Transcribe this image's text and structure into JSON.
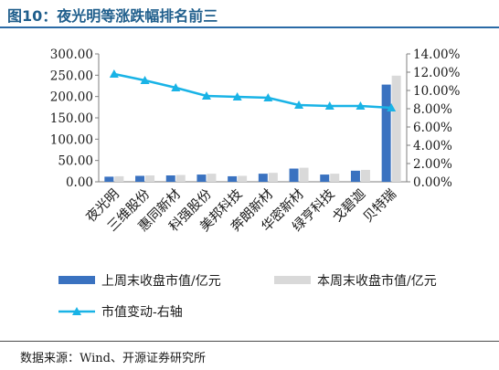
{
  "figure_title": "图10：夜光明等涨跌幅排名前三",
  "source": "数据来源：Wind、开源证券研究所",
  "colors": {
    "this_week": "#3a72c0",
    "last_week": "#d9d9d9",
    "change": "#19b3e6",
    "title": "#1f5e8c"
  },
  "chart_data": {
    "type": "bar",
    "categories": [
      "夜光明",
      "三维股份",
      "惠同新材",
      "科强股份",
      "美邦科技",
      "奔朗新材",
      "华密新材",
      "绿亨科技",
      "戈碧迦",
      "贝特瑞"
    ],
    "series": [
      {
        "name": "上周末收盘市值/亿元",
        "type": "bar",
        "axis": "left",
        "values": [
          12,
          14,
          15,
          17,
          13,
          19,
          31,
          17,
          26,
          228
        ]
      },
      {
        "name": "本周末收盘市值/亿元",
        "type": "bar",
        "axis": "left",
        "values": [
          13,
          15,
          16,
          19,
          14,
          21,
          33,
          19,
          28,
          249
        ]
      },
      {
        "name": "市值变动-右轴",
        "type": "line",
        "axis": "right",
        "values": [
          11.8,
          11.1,
          10.3,
          9.4,
          9.3,
          9.2,
          8.4,
          8.3,
          8.3,
          8.1
        ]
      }
    ],
    "y_left": {
      "min": 0,
      "max": 300,
      "step": 50,
      "ticks": [
        "0.00",
        "50.00",
        "100.00",
        "150.00",
        "200.00",
        "250.00",
        "300.00"
      ]
    },
    "y_right": {
      "min": 0,
      "max": 14,
      "step": 2,
      "ticks": [
        "0.00%",
        "2.00%",
        "4.00%",
        "6.00%",
        "8.00%",
        "10.00%",
        "12.00%",
        "14.00%"
      ]
    },
    "grid": false,
    "legend_position": "bottom"
  }
}
